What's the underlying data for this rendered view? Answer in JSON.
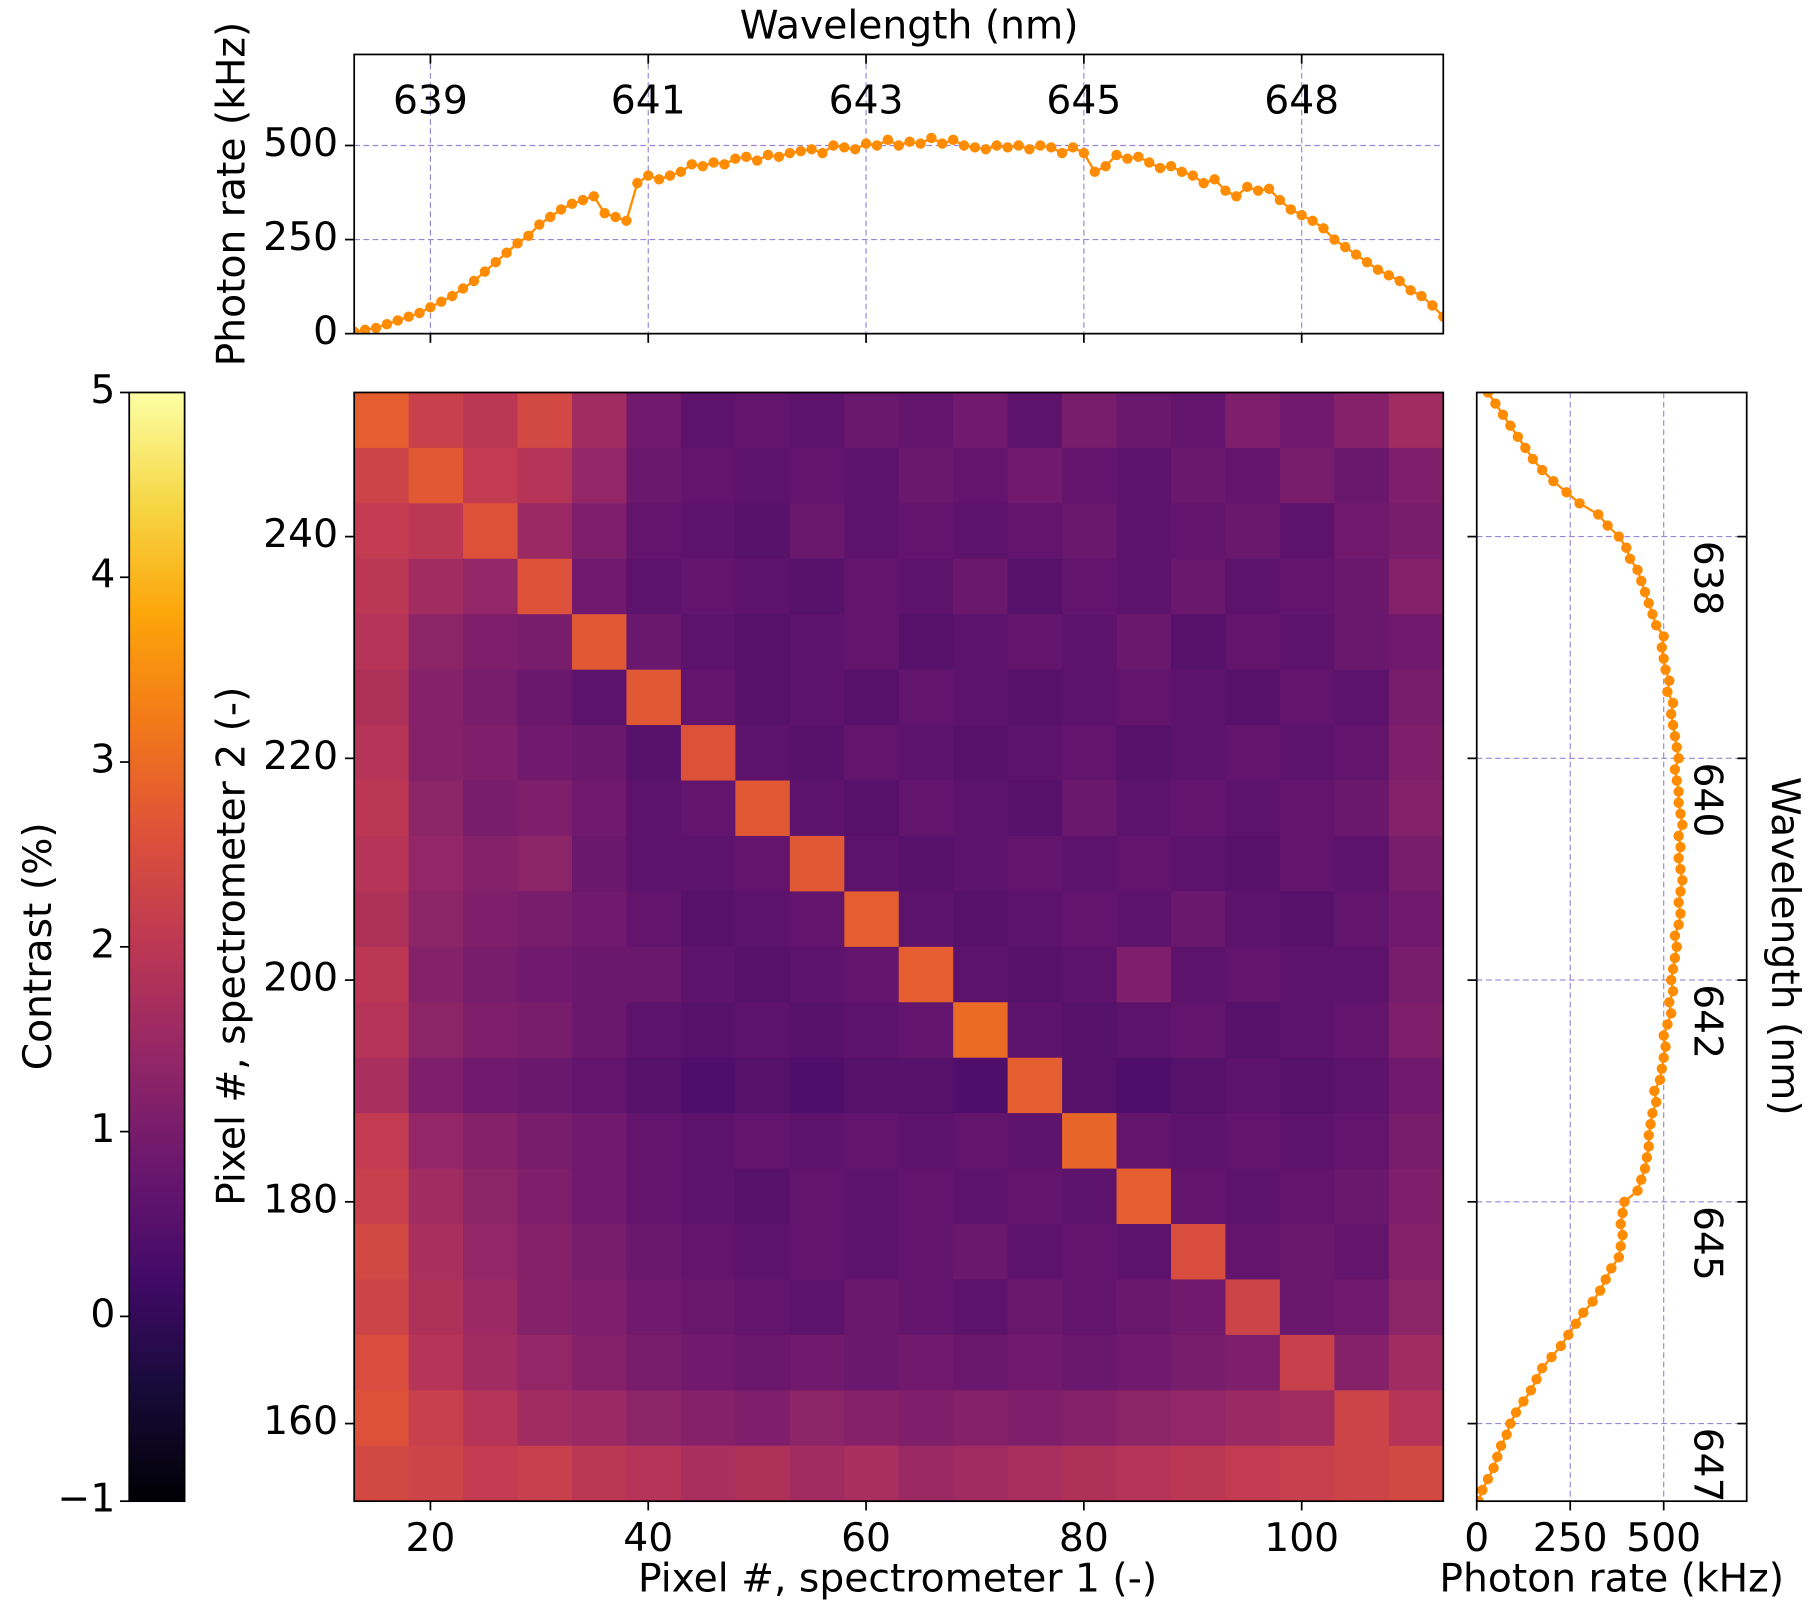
{
  "chart_data": [
    {
      "type": "heatmap",
      "xlabel": "Pixel #, spectrometer 1 (-)",
      "ylabel": "Pixel #, spectrometer 2 (-)",
      "colormap": "inferno",
      "xlim": [
        13,
        113
      ],
      "ylim": [
        153,
        253
      ],
      "xticks": [
        20,
        40,
        60,
        80,
        100
      ],
      "yticks": [
        160,
        180,
        200,
        220,
        240
      ],
      "x": [
        15.5,
        20.5,
        25.5,
        30.5,
        35.5,
        40.5,
        45.5,
        50.5,
        55.5,
        60.5,
        65.5,
        70.5,
        75.5,
        80.5,
        85.5,
        90.5,
        95.5,
        100.5,
        105.5,
        110.5
      ],
      "y": [
        250.5,
        245.5,
        240.5,
        235.5,
        230.5,
        225.5,
        220.5,
        215.5,
        210.5,
        205.5,
        200.5,
        195.5,
        190.5,
        185.5,
        180.5,
        175.5,
        170.5,
        165.5,
        160.5,
        155.5
      ],
      "z": [
        [
          2.8,
          2.2,
          2.0,
          2.4,
          1.6,
          0.9,
          0.6,
          0.7,
          0.6,
          0.8,
          0.7,
          0.9,
          0.6,
          1.0,
          0.8,
          0.7,
          1.1,
          0.9,
          1.2,
          1.6
        ],
        [
          2.3,
          2.7,
          2.1,
          1.9,
          1.4,
          0.8,
          0.7,
          0.6,
          0.7,
          0.6,
          0.8,
          0.7,
          0.9,
          0.7,
          0.6,
          0.8,
          0.7,
          1.0,
          0.8,
          1.1
        ],
        [
          2.1,
          2.0,
          2.6,
          1.5,
          1.1,
          0.7,
          0.6,
          0.5,
          0.8,
          0.6,
          0.7,
          0.6,
          0.7,
          0.8,
          0.6,
          0.7,
          0.8,
          0.6,
          0.9,
          1.0
        ],
        [
          2.0,
          1.6,
          1.4,
          2.6,
          0.9,
          0.6,
          0.7,
          0.6,
          0.5,
          0.7,
          0.6,
          0.8,
          0.5,
          0.7,
          0.6,
          0.8,
          0.6,
          0.7,
          0.8,
          1.2
        ],
        [
          1.9,
          1.3,
          1.1,
          1.0,
          2.7,
          0.8,
          0.6,
          0.5,
          0.6,
          0.7,
          0.5,
          0.6,
          0.7,
          0.6,
          0.8,
          0.5,
          0.7,
          0.6,
          0.8,
          0.9
        ],
        [
          1.8,
          1.2,
          1.0,
          0.8,
          0.6,
          2.7,
          0.7,
          0.5,
          0.6,
          0.5,
          0.7,
          0.6,
          0.5,
          0.6,
          0.7,
          0.6,
          0.5,
          0.7,
          0.6,
          1.0
        ],
        [
          1.9,
          1.2,
          1.1,
          0.9,
          0.8,
          0.5,
          2.6,
          0.6,
          0.5,
          0.7,
          0.6,
          0.5,
          0.6,
          0.7,
          0.5,
          0.6,
          0.7,
          0.6,
          0.7,
          1.1
        ],
        [
          2.0,
          1.3,
          1.0,
          1.1,
          0.9,
          0.6,
          0.7,
          2.7,
          0.6,
          0.5,
          0.7,
          0.6,
          0.5,
          0.8,
          0.6,
          0.7,
          0.6,
          0.7,
          0.8,
          1.2
        ],
        [
          1.9,
          1.4,
          1.2,
          1.3,
          0.8,
          0.6,
          0.6,
          0.7,
          2.7,
          0.6,
          0.5,
          0.6,
          0.7,
          0.6,
          0.7,
          0.6,
          0.5,
          0.7,
          0.6,
          1.0
        ],
        [
          1.8,
          1.3,
          1.1,
          1.0,
          0.9,
          0.7,
          0.5,
          0.6,
          0.7,
          2.8,
          0.6,
          0.5,
          0.6,
          0.7,
          0.6,
          0.8,
          0.6,
          0.5,
          0.7,
          0.9
        ],
        [
          2.0,
          1.2,
          1.0,
          0.9,
          0.8,
          0.8,
          0.6,
          0.5,
          0.6,
          0.7,
          2.8,
          0.6,
          0.5,
          0.6,
          1.1,
          0.6,
          0.7,
          0.6,
          0.6,
          1.0
        ],
        [
          1.9,
          1.3,
          1.1,
          1.0,
          0.8,
          0.6,
          0.5,
          0.6,
          0.5,
          0.6,
          0.7,
          3.0,
          0.6,
          0.5,
          0.6,
          0.7,
          0.5,
          0.6,
          0.7,
          1.1
        ],
        [
          1.7,
          1.1,
          0.9,
          0.8,
          0.7,
          0.5,
          0.4,
          0.5,
          0.4,
          0.5,
          0.5,
          0.4,
          2.8,
          0.5,
          0.4,
          0.5,
          0.6,
          0.5,
          0.6,
          0.9
        ],
        [
          2.1,
          1.4,
          1.2,
          1.0,
          0.9,
          0.7,
          0.6,
          0.7,
          0.6,
          0.7,
          0.6,
          0.7,
          0.6,
          2.9,
          0.7,
          0.6,
          0.7,
          0.6,
          0.7,
          1.0
        ],
        [
          2.2,
          1.6,
          1.3,
          1.1,
          0.9,
          0.7,
          0.6,
          0.5,
          0.7,
          0.6,
          0.7,
          0.6,
          0.7,
          0.6,
          2.8,
          0.7,
          0.6,
          0.7,
          0.8,
          1.1
        ],
        [
          2.4,
          1.7,
          1.4,
          1.2,
          1.0,
          0.8,
          0.7,
          0.6,
          0.7,
          0.6,
          0.7,
          0.8,
          0.6,
          0.7,
          0.6,
          2.5,
          0.7,
          0.8,
          0.7,
          1.2
        ],
        [
          2.3,
          1.8,
          1.5,
          1.2,
          1.1,
          0.9,
          0.8,
          0.7,
          0.6,
          0.8,
          0.7,
          0.6,
          0.8,
          0.7,
          0.8,
          0.9,
          2.3,
          0.8,
          0.9,
          1.3
        ],
        [
          2.5,
          1.9,
          1.6,
          1.4,
          1.2,
          1.0,
          0.9,
          0.8,
          0.9,
          0.8,
          0.9,
          0.8,
          0.9,
          0.8,
          0.9,
          1.0,
          1.1,
          2.2,
          1.2,
          1.6
        ],
        [
          2.6,
          2.2,
          1.9,
          1.6,
          1.5,
          1.3,
          1.2,
          1.1,
          1.3,
          1.2,
          1.1,
          1.2,
          1.1,
          1.2,
          1.3,
          1.4,
          1.5,
          1.6,
          2.3,
          1.9
        ],
        [
          2.4,
          2.3,
          2.1,
          2.2,
          2.0,
          1.9,
          1.7,
          1.8,
          1.6,
          1.7,
          1.5,
          1.6,
          1.7,
          1.8,
          1.9,
          2.0,
          2.1,
          2.2,
          2.3,
          2.4
        ]
      ],
      "colorbar": {
        "label": "Contrast (%)",
        "lim": [
          -1,
          5
        ],
        "ticks": [
          {
            "value": -1,
            "label": "−1"
          },
          0,
          1,
          2,
          3,
          4,
          5
        ]
      }
    },
    {
      "type": "line",
      "title": "Wavelength (nm)",
      "ylabel": "Photon rate (kHz)",
      "grid": true,
      "xlim": [
        13,
        113
      ],
      "ylim": [
        0,
        742
      ],
      "xticks": [
        20,
        40,
        60,
        80,
        100
      ],
      "yticks": [
        0,
        250,
        500
      ],
      "wavelength_ticks": [
        {
          "value": 20,
          "label": "639"
        },
        {
          "value": 40,
          "label": "641"
        },
        {
          "value": 60,
          "label": "643"
        },
        {
          "value": 80,
          "label": "645"
        },
        {
          "value": 100,
          "label": "648"
        }
      ],
      "x": [
        13,
        14,
        15,
        16,
        17,
        18,
        19,
        20,
        21,
        22,
        23,
        24,
        25,
        26,
        27,
        28,
        29,
        30,
        31,
        32,
        33,
        34,
        35,
        36,
        37,
        38,
        39,
        40,
        41,
        42,
        43,
        44,
        45,
        46,
        47,
        48,
        49,
        50,
        51,
        52,
        53,
        54,
        55,
        56,
        57,
        58,
        59,
        60,
        61,
        62,
        63,
        64,
        65,
        66,
        67,
        68,
        69,
        70,
        71,
        72,
        73,
        74,
        75,
        76,
        77,
        78,
        79,
        80,
        81,
        82,
        83,
        84,
        85,
        86,
        87,
        88,
        89,
        90,
        91,
        92,
        93,
        94,
        95,
        96,
        97,
        98,
        99,
        100,
        101,
        102,
        103,
        104,
        105,
        106,
        107,
        108,
        109,
        110,
        111,
        112,
        113
      ],
      "series": [
        {
          "color": "#ff8c00",
          "values": [
            5,
            10,
            15,
            25,
            35,
            45,
            55,
            70,
            85,
            100,
            120,
            140,
            165,
            190,
            215,
            240,
            260,
            290,
            310,
            330,
            345,
            355,
            365,
            320,
            310,
            300,
            400,
            420,
            410,
            420,
            430,
            450,
            445,
            455,
            450,
            465,
            470,
            460,
            475,
            470,
            480,
            485,
            490,
            480,
            500,
            495,
            490,
            505,
            500,
            515,
            500,
            510,
            505,
            520,
            505,
            515,
            500,
            495,
            490,
            500,
            495,
            500,
            490,
            500,
            495,
            480,
            495,
            480,
            430,
            445,
            475,
            465,
            470,
            455,
            440,
            445,
            430,
            420,
            400,
            410,
            380,
            365,
            390,
            380,
            385,
            355,
            330,
            315,
            300,
            280,
            250,
            230,
            210,
            190,
            170,
            155,
            140,
            115,
            100,
            75,
            45
          ]
        }
      ]
    },
    {
      "type": "line",
      "orientation": "horizontal",
      "xlabel": "Photon rate (kHz)",
      "ylabel": "Wavelength (nm)",
      "grid": true,
      "xlim": [
        0,
        722
      ],
      "ylim": [
        153,
        253
      ],
      "xticks": [
        0,
        250,
        500
      ],
      "yticks": [
        160,
        180,
        200,
        220,
        240
      ],
      "wavelength_ticks": [
        {
          "value": 240,
          "label": "638"
        },
        {
          "value": 220,
          "label": "640"
        },
        {
          "value": 200,
          "label": "642"
        },
        {
          "value": 180,
          "label": "645"
        },
        {
          "value": 160,
          "label": "647"
        }
      ],
      "y": [
        153,
        154,
        155,
        156,
        157,
        158,
        159,
        160,
        161,
        162,
        163,
        164,
        165,
        166,
        167,
        168,
        169,
        170,
        171,
        172,
        173,
        174,
        175,
        176,
        177,
        178,
        179,
        180,
        181,
        182,
        183,
        184,
        185,
        186,
        187,
        188,
        189,
        190,
        191,
        192,
        193,
        194,
        195,
        196,
        197,
        198,
        199,
        200,
        201,
        202,
        203,
        204,
        205,
        206,
        207,
        208,
        209,
        210,
        211,
        212,
        213,
        214,
        215,
        216,
        217,
        218,
        219,
        220,
        221,
        222,
        223,
        224,
        225,
        226,
        227,
        228,
        229,
        230,
        231,
        232,
        233,
        234,
        235,
        236,
        237,
        238,
        239,
        240,
        241,
        242,
        243,
        244,
        245,
        246,
        247,
        248,
        249,
        250,
        251,
        252,
        253
      ],
      "series": [
        {
          "color": "#ff8c00",
          "values": [
            5,
            15,
            30,
            45,
            55,
            65,
            80,
            90,
            105,
            125,
            145,
            160,
            175,
            200,
            225,
            245,
            265,
            285,
            310,
            330,
            345,
            360,
            380,
            385,
            390,
            385,
            390,
            395,
            430,
            440,
            450,
            455,
            460,
            460,
            465,
            470,
            480,
            475,
            490,
            495,
            500,
            505,
            500,
            510,
            520,
            515,
            525,
            520,
            525,
            530,
            535,
            530,
            540,
            545,
            540,
            545,
            550,
            545,
            540,
            545,
            540,
            550,
            545,
            540,
            540,
            535,
            530,
            540,
            535,
            530,
            525,
            520,
            525,
            510,
            515,
            505,
            500,
            495,
            500,
            480,
            470,
            460,
            450,
            440,
            430,
            410,
            400,
            380,
            350,
            325,
            275,
            240,
            205,
            175,
            150,
            130,
            110,
            90,
            70,
            50,
            30
          ]
        }
      ]
    }
  ]
}
